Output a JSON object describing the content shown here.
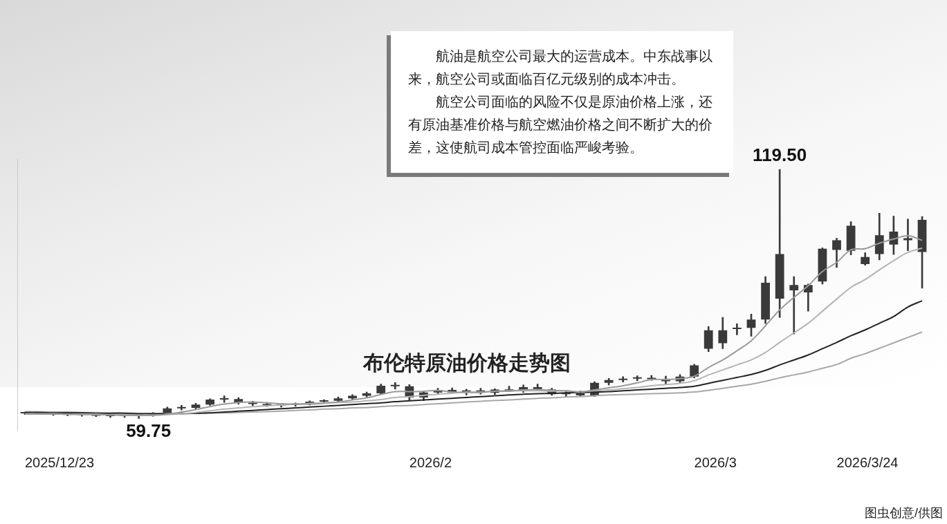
{
  "chart_data": {
    "type": "candlestick",
    "title": "布伦特原油价格走势图",
    "note": [
      "航油是航空公司最大的运营成本。中东战事以来，航空公司或面临百亿元级别的成本冲击。",
      "航空公司面临的风险不仅是原油价格上涨，还有原油基准价格与航空燃油价格之间不断扩大的价差，这使航司成本管控面临严峻考验。"
    ],
    "source": "图虫创意/供图",
    "categories": [
      "2025/12/23",
      null,
      null,
      null,
      null,
      null,
      null,
      null,
      null,
      null,
      null,
      null,
      null,
      null,
      null,
      null,
      null,
      null,
      null,
      null,
      null,
      null,
      null,
      null,
      null,
      null,
      null,
      "2026/2",
      null,
      null,
      null,
      null,
      null,
      null,
      null,
      null,
      null,
      null,
      null,
      null,
      null,
      null,
      null,
      null,
      null,
      null,
      null,
      "2026/3",
      null,
      null,
      null,
      null,
      null,
      null,
      null,
      null,
      null,
      "2026/3/24",
      null,
      null,
      null,
      null,
      null,
      null
    ],
    "series": [
      {
        "type": "candlestick",
        "color": "#3a3a3a",
        "open": [
          61.0,
          61.1,
          60.9,
          60.8,
          60.6,
          60.7,
          60.4,
          60.3,
          60.5,
          60.6,
          61.0,
          62.2,
          62.3,
          63.1,
          64.3,
          64.4,
          63.5,
          63.2,
          62.9,
          63.0,
          63.3,
          63.8,
          64.0,
          64.6,
          65.2,
          65.8,
          67.6,
          67.5,
          64.8,
          66.0,
          66.6,
          66.0,
          66.5,
          65.9,
          66.7,
          66.4,
          67.3,
          66.7,
          65.6,
          65.8,
          65.3,
          68.3,
          69.0,
          69.3,
          69.5,
          69.2,
          68.7,
          69.8,
          76.5,
          80.9,
          81.2,
          81.5,
          83.5,
          88.5,
          91.8,
          90.0,
          92.6,
          100.2,
          100.0,
          98.5,
          99.2,
          101.5,
          103.0,
          107.4
        ],
        "high": [
          61.3,
          61.4,
          61.2,
          61.1,
          60.9,
          61.0,
          60.8,
          60.7,
          60.9,
          61.2,
          62.5,
          62.9,
          63.4,
          64.5,
          65.2,
          64.8,
          63.9,
          63.6,
          63.4,
          63.5,
          64.0,
          64.3,
          64.9,
          65.5,
          66.1,
          68.0,
          68.4,
          67.9,
          66.3,
          67.0,
          67.1,
          66.8,
          67.0,
          66.9,
          67.5,
          67.8,
          68.0,
          67.0,
          66.2,
          66.4,
          68.6,
          69.4,
          69.8,
          70.0,
          70.1,
          69.9,
          70.3,
          72.8,
          81.8,
          84.0,
          82.5,
          84.8,
          93.8,
          119.5,
          93.8,
          92.0,
          100.7,
          103.0,
          107.0,
          99.5,
          109.0,
          108.3,
          107.6,
          108.2
        ],
        "low": [
          60.7,
          60.8,
          60.5,
          60.4,
          60.3,
          60.2,
          60.0,
          60.0,
          59.75,
          60.3,
          60.9,
          61.8,
          62.0,
          62.9,
          63.6,
          63.2,
          62.8,
          62.6,
          62.5,
          62.7,
          63.0,
          63.4,
          63.8,
          64.3,
          64.9,
          65.5,
          66.8,
          64.2,
          64.0,
          65.5,
          65.8,
          65.4,
          65.6,
          65.5,
          66.2,
          66.0,
          66.5,
          65.3,
          65.0,
          65.0,
          65.0,
          67.8,
          68.5,
          68.8,
          68.9,
          68.0,
          68.2,
          69.5,
          75.8,
          76.5,
          79.8,
          79.5,
          82.5,
          84.0,
          80.0,
          85.5,
          92.0,
          96.0,
          99.0,
          96.5,
          97.8,
          99.1,
          100.0,
          91.0
        ],
        "close": [
          61.1,
          60.9,
          60.8,
          60.6,
          60.7,
          60.4,
          60.3,
          60.5,
          60.6,
          61.0,
          62.2,
          62.3,
          63.1,
          64.3,
          64.4,
          63.5,
          63.2,
          62.9,
          63.0,
          63.3,
          63.8,
          64.0,
          64.6,
          65.2,
          65.8,
          67.6,
          67.5,
          64.8,
          66.0,
          66.6,
          66.0,
          66.5,
          65.9,
          66.7,
          66.4,
          67.3,
          66.7,
          65.6,
          65.8,
          65.3,
          68.3,
          69.0,
          69.3,
          69.5,
          69.2,
          68.7,
          69.8,
          72.5,
          80.9,
          77.8,
          81.5,
          83.5,
          92.3,
          99.2,
          90.5,
          91.8,
          100.5,
          102.5,
          106.0,
          96.8,
          103.7,
          104.6,
          102.5,
          99.7
        ]
      },
      {
        "type": "line",
        "color": "#9a9a9a",
        "line_style": "solid",
        "values": [
          60.8,
          60.8,
          60.8,
          60.8,
          60.7,
          60.7,
          60.6,
          60.5,
          60.5,
          60.5,
          60.8,
          61.3,
          61.9,
          62.6,
          63.2,
          63.6,
          63.7,
          63.5,
          63.3,
          63.2,
          63.2,
          63.4,
          63.7,
          64.2,
          64.7,
          65.5,
          66.2,
          66.2,
          66.3,
          66.5,
          66.1,
          66.0,
          66.0,
          66.3,
          66.3,
          66.6,
          66.7,
          66.5,
          66.4,
          66.1,
          66.6,
          67.1,
          67.6,
          68.3,
          69.1,
          69.1,
          69.3,
          69.9,
          72.0,
          73.8,
          76.0,
          78.4,
          82.0,
          85.8,
          88.8,
          91.6,
          95.0,
          97.2,
          100.2,
          100.5,
          101.8,
          102.8,
          103.6,
          102.5
        ]
      },
      {
        "type": "line",
        "color": "#b4b4b4",
        "line_style": "solid",
        "values": [
          60.9,
          60.9,
          60.9,
          60.8,
          60.8,
          60.8,
          60.7,
          60.7,
          60.6,
          60.6,
          60.7,
          60.9,
          61.2,
          61.6,
          62.0,
          62.3,
          62.6,
          62.8,
          63.0,
          63.2,
          63.4,
          63.5,
          63.6,
          63.7,
          64.0,
          64.3,
          64.8,
          65.0,
          65.3,
          65.6,
          65.8,
          66.1,
          66.1,
          66.3,
          66.4,
          66.4,
          66.4,
          66.3,
          66.4,
          66.2,
          66.4,
          66.6,
          66.9,
          67.2,
          67.6,
          67.9,
          68.2,
          68.8,
          70.2,
          71.4,
          72.6,
          73.8,
          75.6,
          78.0,
          80.3,
          82.6,
          85.5,
          88.4,
          91.2,
          93.1,
          95.4,
          97.6,
          99.6,
          100.6
        ]
      },
      {
        "type": "line",
        "color": "#222222",
        "line_style": "solid",
        "values": [
          61.2,
          61.2,
          61.1,
          61.1,
          61.1,
          61.0,
          61.0,
          61.0,
          60.9,
          60.9,
          60.9,
          60.9,
          61.0,
          61.1,
          61.3,
          61.5,
          61.7,
          61.9,
          62.1,
          62.3,
          62.5,
          62.7,
          62.9,
          63.1,
          63.3,
          63.5,
          63.8,
          64.0,
          64.2,
          64.4,
          64.6,
          64.8,
          65.0,
          65.2,
          65.4,
          65.6,
          65.7,
          65.8,
          65.9,
          66.0,
          66.1,
          66.2,
          66.4,
          66.6,
          66.8,
          67.0,
          67.2,
          67.5,
          68.2,
          68.9,
          69.6,
          70.3,
          71.3,
          72.6,
          73.8,
          75.0,
          76.5,
          78.0,
          79.6,
          81.0,
          82.6,
          84.2,
          86.5,
          88.0
        ]
      },
      {
        "type": "line",
        "color": "#a8a8a8",
        "line_style": "solid",
        "values": [
          61.4,
          61.4,
          61.3,
          61.3,
          61.2,
          61.2,
          61.1,
          61.1,
          61.0,
          61.0,
          61.0,
          61.0,
          61.0,
          61.1,
          61.1,
          61.2,
          61.3,
          61.4,
          61.5,
          61.7,
          61.8,
          62.0,
          62.1,
          62.3,
          62.4,
          62.6,
          62.8,
          62.9,
          63.1,
          63.3,
          63.5,
          63.7,
          63.9,
          64.1,
          64.2,
          64.4,
          64.6,
          64.7,
          64.9,
          65.0,
          65.2,
          65.4,
          65.5,
          65.6,
          65.7,
          65.8,
          65.9,
          66.1,
          66.5,
          67.0,
          67.5,
          68.0,
          68.7,
          69.5,
          70.2,
          70.9,
          71.8,
          72.7,
          74.2,
          75.3,
          76.6,
          77.9,
          79.2,
          80.5
        ]
      }
    ],
    "annotations": [
      {
        "text": "59.75",
        "index": 8,
        "value": 59.75
      },
      {
        "text": "119.50",
        "index": 53,
        "value": 119.5
      }
    ],
    "ylim": [
      57,
      122
    ],
    "grid": false,
    "tick_labels": "x"
  }
}
